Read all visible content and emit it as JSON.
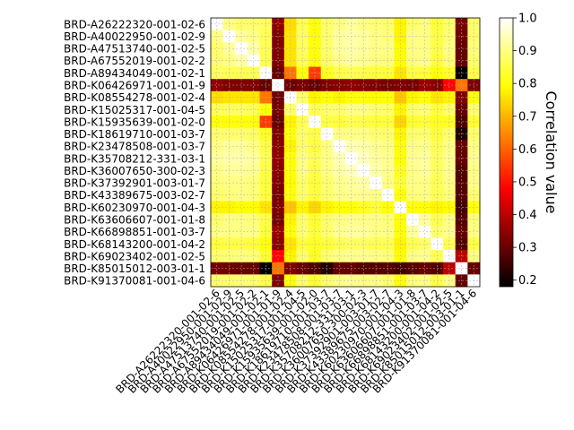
{
  "chart_data": {
    "type": "heatmap",
    "title": "",
    "xlabel": "",
    "ylabel": "",
    "labels": [
      "BRD-A26222320-001-02-6",
      "BRD-A40022950-001-02-9",
      "BRD-A47513740-001-02-5",
      "BRD-A67552019-001-02-2",
      "BRD-A89434049-001-02-1",
      "BRD-K06426971-001-01-9",
      "BRD-K08554278-001-02-4",
      "BRD-K15025317-001-04-5",
      "BRD-K15935639-001-02-0",
      "BRD-K18619710-001-03-7",
      "BRD-K23478508-001-03-7",
      "BRD-K35708212-331-03-1",
      "BRD-K36007650-300-02-3",
      "BRD-K37392901-003-01-7",
      "BRD-K43389675-003-02-7",
      "BRD-K60230970-001-04-3",
      "BRD-K63606607-001-01-8",
      "BRD-K66898851-001-03-7",
      "BRD-K68143200-001-04-2",
      "BRD-K69023402-001-02-5",
      "BRD-K85015012-003-01-1",
      "BRD-K91370081-001-04-6"
    ],
    "values": [
      [
        1.0,
        0.9,
        0.88,
        0.88,
        0.87,
        0.35,
        0.75,
        0.86,
        0.8,
        0.88,
        0.9,
        0.92,
        0.9,
        0.89,
        0.88,
        0.78,
        0.88,
        0.9,
        0.84,
        0.88,
        0.32,
        0.88
      ],
      [
        0.9,
        1.0,
        0.92,
        0.9,
        0.86,
        0.33,
        0.76,
        0.87,
        0.8,
        0.88,
        0.92,
        0.93,
        0.92,
        0.9,
        0.89,
        0.78,
        0.9,
        0.9,
        0.85,
        0.89,
        0.31,
        0.88
      ],
      [
        0.88,
        0.92,
        1.0,
        0.93,
        0.86,
        0.33,
        0.76,
        0.87,
        0.8,
        0.88,
        0.92,
        0.93,
        0.92,
        0.9,
        0.9,
        0.79,
        0.9,
        0.9,
        0.85,
        0.9,
        0.3,
        0.89
      ],
      [
        0.88,
        0.9,
        0.93,
        1.0,
        0.86,
        0.33,
        0.76,
        0.86,
        0.8,
        0.87,
        0.9,
        0.92,
        0.91,
        0.89,
        0.89,
        0.79,
        0.89,
        0.9,
        0.84,
        0.89,
        0.3,
        0.88
      ],
      [
        0.87,
        0.86,
        0.86,
        0.86,
        1.0,
        0.3,
        0.62,
        0.8,
        0.55,
        0.82,
        0.85,
        0.86,
        0.85,
        0.84,
        0.84,
        0.76,
        0.85,
        0.84,
        0.8,
        0.83,
        0.18,
        0.85
      ],
      [
        0.35,
        0.33,
        0.33,
        0.33,
        0.3,
        1.0,
        0.31,
        0.32,
        0.3,
        0.33,
        0.34,
        0.35,
        0.34,
        0.33,
        0.32,
        0.33,
        0.32,
        0.36,
        0.34,
        0.48,
        0.62,
        0.33
      ],
      [
        0.75,
        0.76,
        0.76,
        0.76,
        0.62,
        0.31,
        1.0,
        0.88,
        0.78,
        0.8,
        0.78,
        0.8,
        0.8,
        0.79,
        0.8,
        0.72,
        0.78,
        0.8,
        0.76,
        0.78,
        0.33,
        0.8
      ],
      [
        0.86,
        0.87,
        0.87,
        0.86,
        0.8,
        0.32,
        0.88,
        1.0,
        0.86,
        0.88,
        0.88,
        0.9,
        0.9,
        0.88,
        0.88,
        0.78,
        0.88,
        0.89,
        0.84,
        0.88,
        0.3,
        0.88
      ],
      [
        0.8,
        0.8,
        0.8,
        0.8,
        0.55,
        0.3,
        0.78,
        0.86,
        1.0,
        0.85,
        0.84,
        0.86,
        0.85,
        0.84,
        0.84,
        0.74,
        0.83,
        0.84,
        0.82,
        0.82,
        0.27,
        0.83
      ],
      [
        0.88,
        0.88,
        0.88,
        0.87,
        0.82,
        0.33,
        0.8,
        0.88,
        0.85,
        1.0,
        0.9,
        0.9,
        0.9,
        0.88,
        0.88,
        0.78,
        0.88,
        0.88,
        0.84,
        0.88,
        0.22,
        0.88
      ],
      [
        0.9,
        0.92,
        0.92,
        0.9,
        0.85,
        0.34,
        0.78,
        0.88,
        0.84,
        0.9,
        1.0,
        0.94,
        0.93,
        0.91,
        0.9,
        0.8,
        0.9,
        0.91,
        0.86,
        0.9,
        0.3,
        0.9
      ],
      [
        0.92,
        0.93,
        0.93,
        0.92,
        0.86,
        0.35,
        0.8,
        0.9,
        0.86,
        0.9,
        0.94,
        1.0,
        0.95,
        0.92,
        0.91,
        0.8,
        0.91,
        0.92,
        0.87,
        0.91,
        0.3,
        0.91
      ],
      [
        0.9,
        0.92,
        0.92,
        0.91,
        0.85,
        0.34,
        0.8,
        0.9,
        0.85,
        0.9,
        0.93,
        0.95,
        1.0,
        0.93,
        0.91,
        0.82,
        0.9,
        0.92,
        0.87,
        0.91,
        0.28,
        0.9
      ],
      [
        0.89,
        0.9,
        0.9,
        0.89,
        0.84,
        0.33,
        0.79,
        0.88,
        0.84,
        0.88,
        0.91,
        0.92,
        0.93,
        1.0,
        0.9,
        0.84,
        0.9,
        0.9,
        0.86,
        0.9,
        0.28,
        0.9
      ],
      [
        0.88,
        0.89,
        0.9,
        0.89,
        0.84,
        0.32,
        0.8,
        0.88,
        0.84,
        0.88,
        0.9,
        0.91,
        0.91,
        0.9,
        1.0,
        0.8,
        0.89,
        0.9,
        0.86,
        0.89,
        0.28,
        0.88
      ],
      [
        0.78,
        0.78,
        0.79,
        0.79,
        0.76,
        0.33,
        0.72,
        0.78,
        0.74,
        0.78,
        0.8,
        0.8,
        0.82,
        0.84,
        0.8,
        1.0,
        0.8,
        0.8,
        0.78,
        0.79,
        0.26,
        0.8
      ],
      [
        0.88,
        0.9,
        0.9,
        0.89,
        0.85,
        0.32,
        0.78,
        0.88,
        0.83,
        0.88,
        0.9,
        0.91,
        0.9,
        0.9,
        0.89,
        0.8,
        1.0,
        0.92,
        0.86,
        0.9,
        0.28,
        0.89
      ],
      [
        0.9,
        0.9,
        0.9,
        0.9,
        0.84,
        0.36,
        0.8,
        0.89,
        0.84,
        0.88,
        0.91,
        0.92,
        0.92,
        0.9,
        0.9,
        0.8,
        0.92,
        1.0,
        0.88,
        0.91,
        0.3,
        0.9
      ],
      [
        0.84,
        0.85,
        0.85,
        0.84,
        0.8,
        0.34,
        0.76,
        0.84,
        0.82,
        0.84,
        0.86,
        0.87,
        0.87,
        0.86,
        0.86,
        0.78,
        0.86,
        0.88,
        1.0,
        0.86,
        0.28,
        0.85
      ],
      [
        0.88,
        0.89,
        0.9,
        0.89,
        0.83,
        0.48,
        0.78,
        0.88,
        0.82,
        0.88,
        0.9,
        0.91,
        0.91,
        0.9,
        0.89,
        0.79,
        0.9,
        0.91,
        0.86,
        1.0,
        0.4,
        0.9
      ],
      [
        0.32,
        0.31,
        0.3,
        0.3,
        0.18,
        0.62,
        0.33,
        0.3,
        0.27,
        0.22,
        0.3,
        0.3,
        0.28,
        0.28,
        0.28,
        0.26,
        0.28,
        0.3,
        0.28,
        0.4,
        1.0,
        0.3
      ],
      [
        0.88,
        0.88,
        0.89,
        0.88,
        0.85,
        0.33,
        0.8,
        0.88,
        0.83,
        0.88,
        0.9,
        0.91,
        0.9,
        0.9,
        0.88,
        0.8,
        0.89,
        0.9,
        0.85,
        0.9,
        0.3,
        1.0
      ]
    ],
    "colorbar": {
      "label": "Correlation value",
      "range": [
        0.18,
        1.0
      ],
      "ticks": [
        0.2,
        0.3,
        0.4,
        0.5,
        0.6,
        0.7,
        0.8,
        0.9,
        1.0
      ],
      "tick_labels": [
        "0.2",
        "0.3",
        "0.4",
        "0.5",
        "0.6",
        "0.7",
        "0.8",
        "0.9",
        "1.0"
      ],
      "colormap": "hot"
    },
    "grid": true
  }
}
